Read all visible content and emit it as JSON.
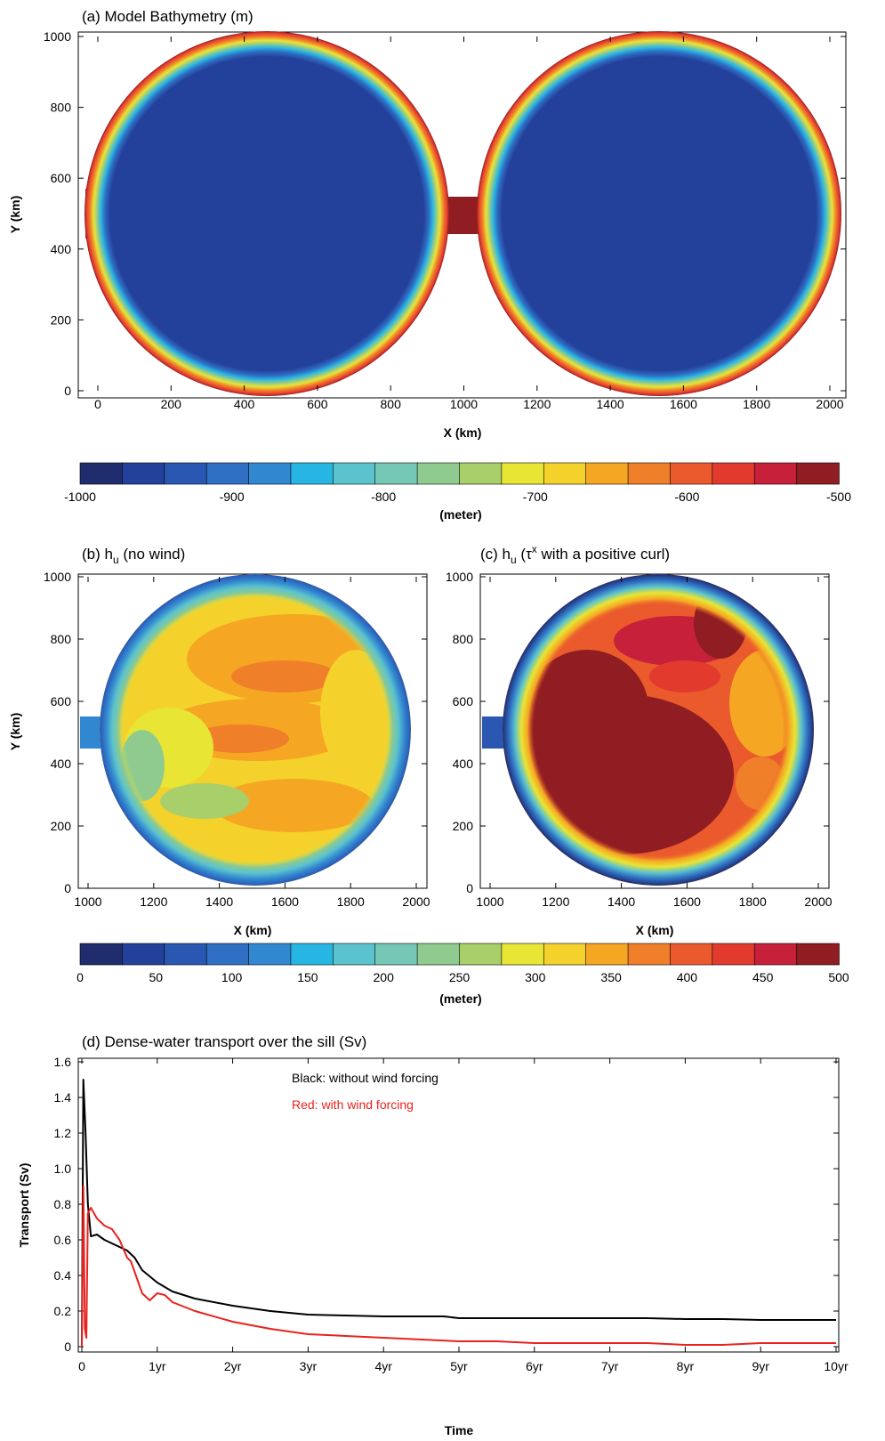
{
  "colors": [
    "#1f2d6e",
    "#23409b",
    "#2a57b2",
    "#2f6fc4",
    "#3287d1",
    "#27b6e3",
    "#5bc3cd",
    "#76c8b6",
    "#8fca8f",
    "#a8cf6a",
    "#e8e534",
    "#f5d12c",
    "#f5a623",
    "#f07f2a",
    "#ea5a2d",
    "#e33a2e",
    "#c7203a",
    "#8f1d22"
  ],
  "panels": [
    {
      "title": "(a) Model Bathymetry (m)",
      "xlabel": "X (km)",
      "ylabel": "Y (km)",
      "xticks": [
        "0",
        "200",
        "400",
        "600",
        "800",
        "1000",
        "1200",
        "1400",
        "1600",
        "1800",
        "2000"
      ],
      "yticks": [
        "0",
        "200",
        "400",
        "600",
        "800",
        "1000"
      ]
    },
    {
      "title_main": "(b) h",
      "title_sub": "u",
      "title_rest": " (no wind)",
      "xlabel": "X (km)",
      "ylabel": "Y (km)",
      "xticks": [
        "1000",
        "1200",
        "1400",
        "1600",
        "1800",
        "2000"
      ],
      "yticks": [
        "0",
        "200",
        "400",
        "600",
        "800",
        "1000"
      ]
    },
    {
      "title_main": "(c) h",
      "title_sub": "u",
      "title_mid": " (τ",
      "title_sup": "x",
      "title_rest": " with a positive curl)",
      "xlabel": "X (km)",
      "xticks": [
        "1000",
        "1200",
        "1400",
        "1600",
        "1800",
        "2000"
      ]
    }
  ],
  "colorbar_a": {
    "labels": [
      "-1000",
      "-900",
      "-800",
      "-700",
      "-600",
      "-500"
    ],
    "unit": "(meter)"
  },
  "colorbar_b": {
    "labels": [
      "0",
      "50",
      "100",
      "150",
      "200",
      "250",
      "300",
      "350",
      "400",
      "450",
      "500"
    ],
    "unit": "(meter)"
  },
  "chart_data": {
    "type": "line",
    "title": "(d) Dense-water transport over the sill (Sv)",
    "xlabel": "Time",
    "ylabel": "Transport (Sv)",
    "xlim": [
      0,
      10
    ],
    "ylim": [
      0,
      1.6
    ],
    "xtick_labels": [
      "0",
      "1yr",
      "2yr",
      "3yr",
      "4yr",
      "5yr",
      "6yr",
      "7yr",
      "8yr",
      "9yr",
      "10yr"
    ],
    "ytick_labels": [
      "0",
      "0.2",
      "0.4",
      "0.6",
      "0.8",
      "1.0",
      "1.2",
      "1.4",
      "1.6"
    ],
    "annotations": [
      "Black: without wind forcing",
      "Red: with wind forcing"
    ],
    "series": [
      {
        "color": "#000000",
        "x": [
          0,
          0.02,
          0.05,
          0.08,
          0.12,
          0.2,
          0.3,
          0.4,
          0.5,
          0.6,
          0.7,
          0.8,
          1.0,
          1.2,
          1.5,
          2.0,
          2.5,
          3.0,
          3.5,
          4.0,
          4.5,
          4.8,
          5.0,
          5.5,
          6.0,
          6.5,
          7.0,
          7.5,
          8.0,
          8.5,
          9.0,
          9.5,
          10.0
        ],
        "y": [
          0.0,
          1.5,
          1.2,
          0.8,
          0.62,
          0.63,
          0.6,
          0.58,
          0.56,
          0.54,
          0.5,
          0.43,
          0.36,
          0.31,
          0.27,
          0.23,
          0.2,
          0.18,
          0.175,
          0.17,
          0.17,
          0.17,
          0.16,
          0.16,
          0.16,
          0.16,
          0.16,
          0.16,
          0.155,
          0.155,
          0.15,
          0.15,
          0.15
        ]
      },
      {
        "color": "#e8221f",
        "x": [
          0,
          0.02,
          0.04,
          0.06,
          0.08,
          0.12,
          0.2,
          0.3,
          0.4,
          0.5,
          0.55,
          0.6,
          0.65,
          0.7,
          0.75,
          0.8,
          0.9,
          1.0,
          1.1,
          1.2,
          1.5,
          2.0,
          2.5,
          3.0,
          3.5,
          4.0,
          4.5,
          5.0,
          5.5,
          6.0,
          6.5,
          7.0,
          7.5,
          8.0,
          8.5,
          9.0,
          9.5,
          10.0
        ],
        "y": [
          0.0,
          0.9,
          0.1,
          0.05,
          0.75,
          0.78,
          0.72,
          0.68,
          0.66,
          0.6,
          0.55,
          0.5,
          0.48,
          0.42,
          0.36,
          0.3,
          0.26,
          0.3,
          0.29,
          0.25,
          0.2,
          0.14,
          0.1,
          0.07,
          0.06,
          0.05,
          0.04,
          0.03,
          0.03,
          0.02,
          0.02,
          0.02,
          0.02,
          0.01,
          0.01,
          0.02,
          0.02,
          0.02
        ]
      }
    ]
  }
}
